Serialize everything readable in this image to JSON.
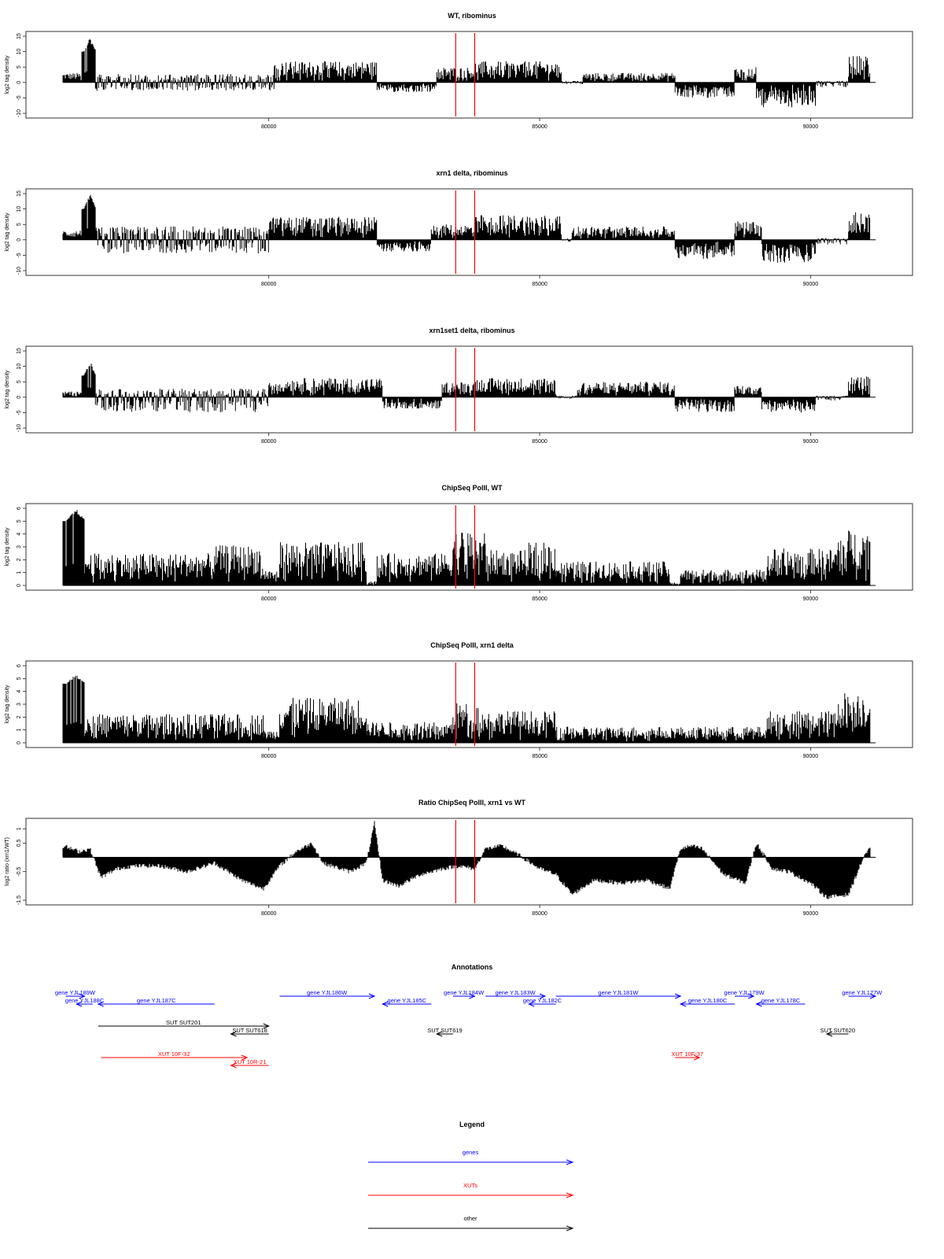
{
  "chart_data": [
    {
      "type": "bar",
      "title": "WT, ribominus",
      "ylabel": "log2 tag density",
      "x_range": [
        76200,
        91200
      ],
      "x_ticks": [
        80000,
        85000,
        90000
      ],
      "ylim": [
        -10,
        15
      ],
      "y_ticks": [
        -10,
        -5,
        0,
        5,
        10,
        15
      ],
      "color": "#000000",
      "baseline": "zero",
      "segments": [
        {
          "x": [
            76200,
            76550
          ],
          "sign": 1,
          "level": 2.5
        },
        {
          "x": [
            76550,
            76800
          ],
          "sign": 1,
          "level": 10,
          "peak": 15
        },
        {
          "x": [
            76800,
            80100
          ],
          "sign": 0,
          "level": 2.5,
          "neg": 2.5
        },
        {
          "x": [
            80100,
            82000
          ],
          "sign": 1,
          "level": 5.5
        },
        {
          "x": [
            82000,
            83100
          ],
          "sign": -1,
          "level": 2.5
        },
        {
          "x": [
            83100,
            83800
          ],
          "sign": 1,
          "level": 4
        },
        {
          "x": [
            83800,
            85400
          ],
          "sign": 1,
          "level": 5.5
        },
        {
          "x": [
            85400,
            85800
          ],
          "sign": 0,
          "level": 0.5,
          "neg": 0.5
        },
        {
          "x": [
            85800,
            87500
          ],
          "sign": 1,
          "level": 2.5
        },
        {
          "x": [
            87500,
            88600
          ],
          "sign": -1,
          "level": 4
        },
        {
          "x": [
            88600,
            89000
          ],
          "sign": 1,
          "level": 4
        },
        {
          "x": [
            89000,
            90100
          ],
          "sign": -1,
          "level": 6.5
        },
        {
          "x": [
            90100,
            90700
          ],
          "sign": 0,
          "level": 0.5,
          "neg": 1.5
        },
        {
          "x": [
            90700,
            91100
          ],
          "sign": 1,
          "level": 7
        }
      ]
    },
    {
      "type": "bar",
      "title": "xrn1 delta, ribominus",
      "ylabel": "log2 tag density",
      "x_range": [
        76200,
        91200
      ],
      "x_ticks": [
        80000,
        85000,
        90000
      ],
      "ylim": [
        -10,
        15
      ],
      "y_ticks": [
        -10,
        -5,
        0,
        5,
        10,
        15
      ],
      "color": "#000000",
      "baseline": "zero",
      "segments": [
        {
          "x": [
            76200,
            76550
          ],
          "sign": 1,
          "level": 2.5
        },
        {
          "x": [
            76550,
            76800
          ],
          "sign": 1,
          "level": 10,
          "peak": 15
        },
        {
          "x": [
            76800,
            80000
          ],
          "sign": 0,
          "level": 4,
          "neg": 4
        },
        {
          "x": [
            80000,
            82000
          ],
          "sign": 1,
          "level": 6
        },
        {
          "x": [
            82000,
            83000
          ],
          "sign": -1,
          "level": 3
        },
        {
          "x": [
            83000,
            83800
          ],
          "sign": 1,
          "level": 4
        },
        {
          "x": [
            83800,
            85400
          ],
          "sign": 1,
          "level": 6.5
        },
        {
          "x": [
            85400,
            85600
          ],
          "sign": 0,
          "level": 0.5,
          "neg": 0.5
        },
        {
          "x": [
            85600,
            87500
          ],
          "sign": 1,
          "level": 3.5
        },
        {
          "x": [
            87500,
            88600
          ],
          "sign": -1,
          "level": 5
        },
        {
          "x": [
            88600,
            89100
          ],
          "sign": 1,
          "level": 5
        },
        {
          "x": [
            89100,
            90100
          ],
          "sign": -1,
          "level": 6
        },
        {
          "x": [
            90100,
            90700
          ],
          "sign": 0,
          "level": 0.5,
          "neg": 1.5
        },
        {
          "x": [
            90700,
            91100
          ],
          "sign": 1,
          "level": 7.5
        }
      ]
    },
    {
      "type": "bar",
      "title": "xrn1set1 delta, ribominus",
      "ylabel": "log2 tag density",
      "x_range": [
        76200,
        91200
      ],
      "x_ticks": [
        80000,
        85000,
        90000
      ],
      "ylim": [
        -10,
        15
      ],
      "y_ticks": [
        -10,
        -5,
        0,
        5,
        10,
        15
      ],
      "color": "#000000",
      "baseline": "zero",
      "segments": [
        {
          "x": [
            76200,
            76550
          ],
          "sign": 1,
          "level": 1.5
        },
        {
          "x": [
            76550,
            76800
          ],
          "sign": 1,
          "level": 7,
          "peak": 12
        },
        {
          "x": [
            76800,
            80000
          ],
          "sign": 0,
          "level": 2.5,
          "neg": 4.5
        },
        {
          "x": [
            80000,
            82100
          ],
          "sign": 1,
          "level": 5
        },
        {
          "x": [
            82100,
            83200
          ],
          "sign": -1,
          "level": 3
        },
        {
          "x": [
            83200,
            83800
          ],
          "sign": 1,
          "level": 4
        },
        {
          "x": [
            83800,
            85300
          ],
          "sign": 1,
          "level": 5
        },
        {
          "x": [
            85300,
            85700
          ],
          "sign": 0,
          "level": 0.5,
          "neg": 0.5
        },
        {
          "x": [
            85700,
            87500
          ],
          "sign": 1,
          "level": 4
        },
        {
          "x": [
            87500,
            88600
          ],
          "sign": -1,
          "level": 4
        },
        {
          "x": [
            88600,
            89100
          ],
          "sign": 1,
          "level": 3
        },
        {
          "x": [
            89100,
            90100
          ],
          "sign": -1,
          "level": 4
        },
        {
          "x": [
            90100,
            90700
          ],
          "sign": 0,
          "level": 0.5,
          "neg": 1
        },
        {
          "x": [
            90700,
            91100
          ],
          "sign": 1,
          "level": 5.5
        }
      ]
    },
    {
      "type": "bar",
      "title": "ChipSeq PolII, WT",
      "ylabel": "log2 tag density",
      "x_range": [
        76200,
        91200
      ],
      "x_ticks": [
        80000,
        85000,
        90000
      ],
      "ylim": [
        0,
        6
      ],
      "y_ticks": [
        0,
        1,
        2,
        3,
        4,
        5,
        6
      ],
      "color": "#000000",
      "baseline": "zero",
      "segments": [
        {
          "x": [
            76200,
            76600
          ],
          "sign": 1,
          "level": 5,
          "peak": 6
        },
        {
          "x": [
            76600,
            79000
          ],
          "sign": 1,
          "level": 2
        },
        {
          "x": [
            79000,
            79900
          ],
          "sign": 1,
          "level": 2.5
        },
        {
          "x": [
            79900,
            80200
          ],
          "sign": 1,
          "level": 1
        },
        {
          "x": [
            80200,
            81800
          ],
          "sign": 1,
          "level": 2.7
        },
        {
          "x": [
            81800,
            82000
          ],
          "sign": 1,
          "level": 0.3
        },
        {
          "x": [
            82000,
            83400
          ],
          "sign": 1,
          "level": 2
        },
        {
          "x": [
            83400,
            84000
          ],
          "sign": 1,
          "level": 3.5
        },
        {
          "x": [
            84000,
            84800
          ],
          "sign": 1,
          "level": 2.2
        },
        {
          "x": [
            84800,
            85300
          ],
          "sign": 1,
          "level": 2.7
        },
        {
          "x": [
            85300,
            87400
          ],
          "sign": 1,
          "level": 1.5
        },
        {
          "x": [
            87400,
            87600
          ],
          "sign": 1,
          "level": 0.2
        },
        {
          "x": [
            87600,
            89200
          ],
          "sign": 1,
          "level": 1
        },
        {
          "x": [
            89200,
            90500
          ],
          "sign": 1,
          "level": 2.3
        },
        {
          "x": [
            90500,
            91100
          ],
          "sign": 1,
          "level": 3.5
        }
      ]
    },
    {
      "type": "bar",
      "title": "ChipSeq PolII, xrn1 delta",
      "ylabel": "log2 tag density",
      "x_range": [
        76200,
        91200
      ],
      "x_ticks": [
        80000,
        85000,
        90000
      ],
      "ylim": [
        0,
        6
      ],
      "y_ticks": [
        0,
        1,
        2,
        3,
        4,
        5,
        6
      ],
      "color": "#000000",
      "baseline": "zero",
      "segments": [
        {
          "x": [
            76200,
            76600
          ],
          "sign": 1,
          "level": 4.6,
          "peak": 5.4
        },
        {
          "x": [
            76600,
            79900
          ],
          "sign": 1,
          "level": 1.8
        },
        {
          "x": [
            79900,
            80200
          ],
          "sign": 1,
          "level": 0.8
        },
        {
          "x": [
            80200,
            81800
          ],
          "sign": 1,
          "level": 2.8
        },
        {
          "x": [
            81800,
            83400
          ],
          "sign": 1,
          "level": 1.3
        },
        {
          "x": [
            83400,
            83900
          ],
          "sign": 1,
          "level": 2.5
        },
        {
          "x": [
            83900,
            85300
          ],
          "sign": 1,
          "level": 2
        },
        {
          "x": [
            85300,
            89200
          ],
          "sign": 1,
          "level": 1
        },
        {
          "x": [
            89200,
            90500
          ],
          "sign": 1,
          "level": 2
        },
        {
          "x": [
            90500,
            91100
          ],
          "sign": 1,
          "level": 3.2
        }
      ]
    },
    {
      "type": "area",
      "title": "Ratio ChipSeq PolII, xrn1 vs WT",
      "ylabel": "log2 ratio (xrn1/WT)",
      "x_range": [
        76200,
        91200
      ],
      "x_ticks": [
        80000,
        85000,
        90000
      ],
      "ylim": [
        -1.5,
        1.2
      ],
      "y_ticks": [
        -1.5,
        -0.5,
        0.5,
        1.0
      ],
      "color": "#000000",
      "baseline": "zero",
      "x": [
        76200,
        76500,
        76700,
        76900,
        77200,
        77500,
        78000,
        78500,
        79000,
        79500,
        79900,
        80200,
        80500,
        80800,
        81000,
        81500,
        81800,
        81950,
        82100,
        82400,
        82800,
        83200,
        83500,
        83800,
        84000,
        84300,
        84600,
        85000,
        85300,
        85600,
        86000,
        86500,
        87000,
        87400,
        87600,
        87800,
        88000,
        88400,
        88800,
        89000,
        89300,
        89600,
        90000,
        90300,
        90700,
        91000,
        91100
      ],
      "values": [
        0.4,
        0.2,
        0.3,
        -0.7,
        -0.4,
        -0.3,
        -0.3,
        -0.5,
        -0.2,
        -0.8,
        -1.1,
        -0.3,
        0.2,
        0.5,
        -0.2,
        -0.5,
        -0.2,
        1.2,
        -0.8,
        -1.0,
        -0.6,
        -0.4,
        -0.3,
        -0.4,
        0.3,
        0.4,
        0.1,
        -0.4,
        -0.6,
        -1.3,
        -0.8,
        -0.9,
        -0.8,
        -1.1,
        0.3,
        0.4,
        0.3,
        -0.6,
        -0.9,
        0.5,
        -0.4,
        -0.5,
        -0.9,
        -1.4,
        -1.3,
        0.1,
        0.3
      ]
    }
  ],
  "markers": {
    "x": [
      83450,
      83800
    ],
    "color": "#ff0000"
  },
  "annotations": {
    "title": "Annotations",
    "x_range": [
      76200,
      91200
    ],
    "features": [
      {
        "label": "gene YJL189W",
        "start": 76250,
        "end": 76600,
        "strand": "+",
        "kind": "gene",
        "row": 0
      },
      {
        "label": "gene YJL188C",
        "start": 76450,
        "end": 76750,
        "strand": "-",
        "kind": "gene",
        "row": 1
      },
      {
        "label": "gene YJL187C",
        "start": 76850,
        "end": 79000,
        "strand": "-",
        "kind": "gene",
        "row": 1
      },
      {
        "label": "gene YJL186W",
        "start": 80200,
        "end": 81950,
        "strand": "+",
        "kind": "gene",
        "row": 0
      },
      {
        "label": "gene YJL185C",
        "start": 82100,
        "end": 83000,
        "strand": "-",
        "kind": "gene",
        "row": 1
      },
      {
        "label": "gene YJL184W",
        "start": 83400,
        "end": 83800,
        "strand": "+",
        "kind": "gene",
        "row": 0
      },
      {
        "label": "gene YJL183W",
        "start": 84000,
        "end": 85100,
        "strand": "+",
        "kind": "gene",
        "row": 0
      },
      {
        "label": "gene YJL182C",
        "start": 84800,
        "end": 85300,
        "strand": "-",
        "kind": "gene",
        "row": 1
      },
      {
        "label": "gene YJL181W",
        "start": 85300,
        "end": 87600,
        "strand": "+",
        "kind": "gene",
        "row": 0
      },
      {
        "label": "gene YJL180C",
        "start": 87600,
        "end": 88600,
        "strand": "-",
        "kind": "gene",
        "row": 1
      },
      {
        "label": "gene YJL179W",
        "start": 88600,
        "end": 88950,
        "strand": "+",
        "kind": "gene",
        "row": 0
      },
      {
        "label": "gene YJL178C",
        "start": 89000,
        "end": 89900,
        "strand": "-",
        "kind": "gene",
        "row": 1
      },
      {
        "label": "gene YJL177W",
        "start": 90700,
        "end": 91200,
        "strand": "+",
        "kind": "gene",
        "row": 0
      },
      {
        "label": "SUT SUT201",
        "start": 76850,
        "end": 80000,
        "strand": "+",
        "kind": "other",
        "row": 2
      },
      {
        "label": "SUT SUT618",
        "start": 79300,
        "end": 80000,
        "strand": "-",
        "kind": "other",
        "row": 3
      },
      {
        "label": "SUT SUT619",
        "start": 83100,
        "end": 83400,
        "strand": "-",
        "kind": "other",
        "row": 3
      },
      {
        "label": "SUT SUT620",
        "start": 90300,
        "end": 90700,
        "strand": "-",
        "kind": "other",
        "row": 3
      },
      {
        "label": "XUT 10F-32",
        "start": 76900,
        "end": 79600,
        "strand": "+",
        "kind": "xut",
        "row": 4
      },
      {
        "label": "XUT 10R-21",
        "start": 79300,
        "end": 80000,
        "strand": "-",
        "kind": "xut",
        "row": 5
      },
      {
        "label": "XUT 10F-37",
        "start": 87500,
        "end": 87950,
        "strand": "+",
        "kind": "xut",
        "row": 4
      }
    ]
  },
  "legend": {
    "title": "Legend",
    "entries": [
      {
        "label": "genes",
        "color": "#0000ff"
      },
      {
        "label": "XUTs",
        "color": "#ff0000"
      },
      {
        "label": "other",
        "color": "#000000"
      }
    ]
  },
  "colors": {
    "gene": "#0000ff",
    "xut": "#ff0000",
    "other": "#000000",
    "marker": "#ff0000"
  }
}
